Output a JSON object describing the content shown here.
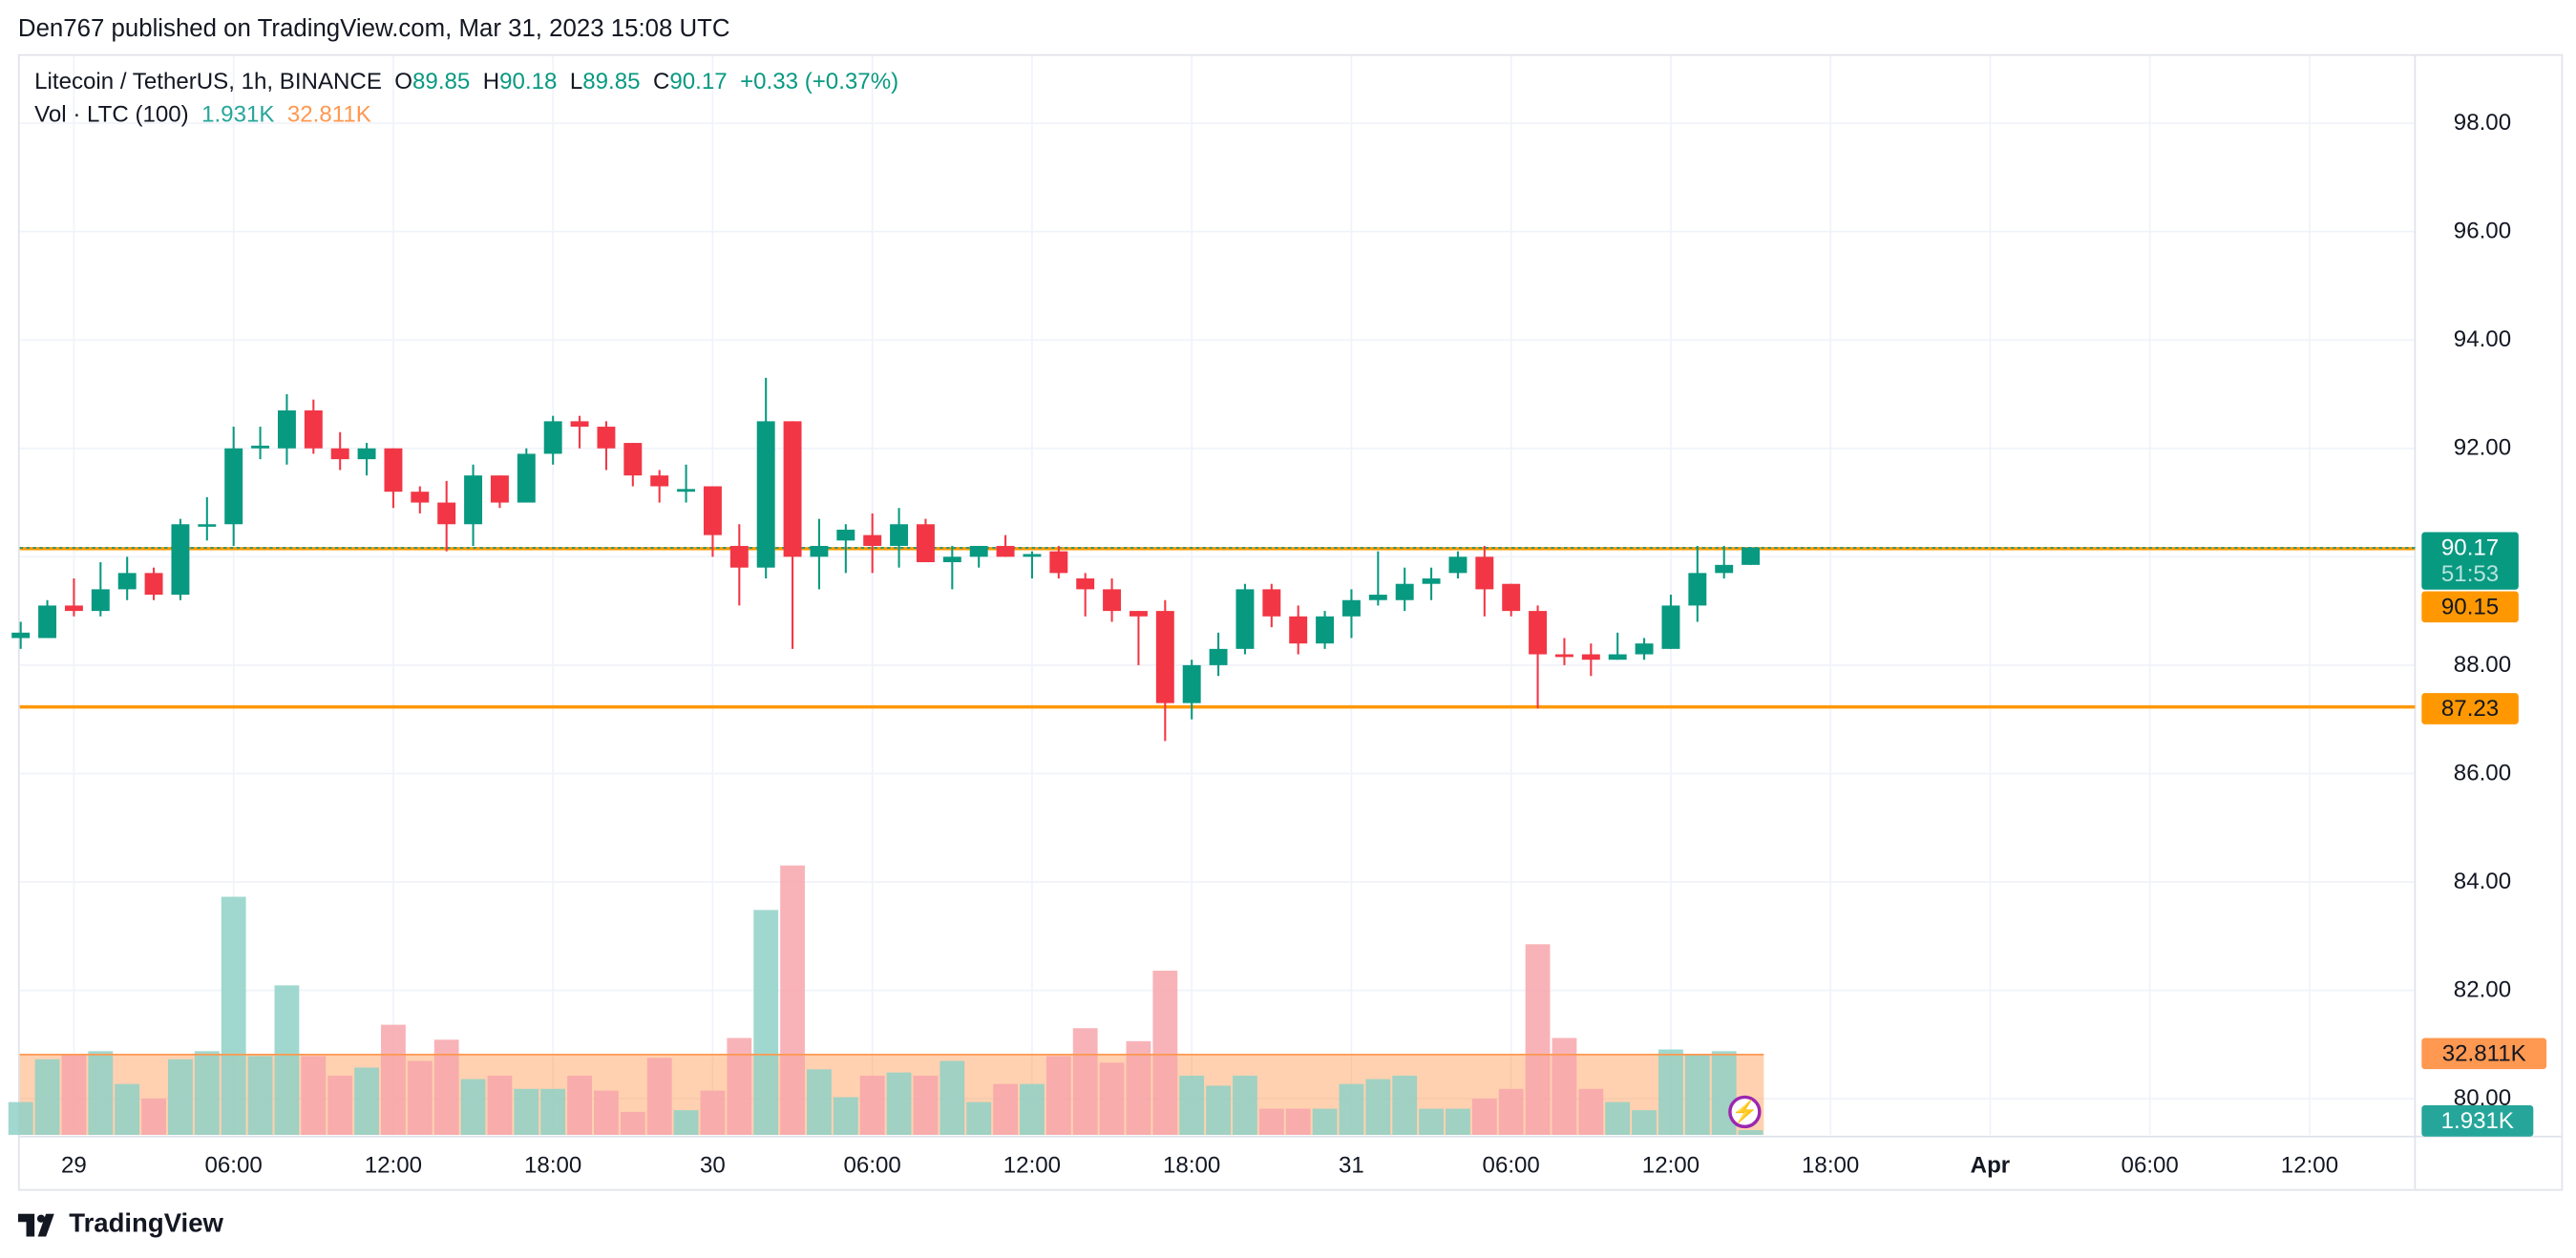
{
  "header": {
    "published": "Den767 published on TradingView.com, Mar 31, 2023 15:08 UTC"
  },
  "legend": {
    "symbol": "Litecoin / TetherUS, 1h, BINANCE",
    "o_label": "O",
    "o": "89.85",
    "h_label": "H",
    "h": "90.18",
    "l_label": "L",
    "l": "89.85",
    "c_label": "C",
    "c": "90.17",
    "change": "+0.33 (+0.37%)",
    "volume_label": "Vol · LTC (100)",
    "volume_value": "1.931K",
    "volume_ma_value": "32.811K"
  },
  "price_tags": {
    "last_price": "90.17",
    "countdown": "51:53",
    "line_upper": "90.15",
    "line_lower": "87.23",
    "volume_ma": "32.811K",
    "volume_last": "1.931K"
  },
  "logo": {
    "text": "TradingView"
  },
  "colors": {
    "up": "#089981",
    "down": "#F23645",
    "up_volume": "#8fd1c7",
    "down_volume": "#f7a6ab",
    "level_line": "#ff9800",
    "volume_ma": "#ff9850",
    "event_icon": "#9c27b0"
  },
  "icons": {
    "event": "lightning-icon",
    "logo": "tradingview-logo-icon"
  },
  "chart_data": {
    "type": "candlestick",
    "interval": "1h",
    "first_bar": "2023-03-28 22:00",
    "y_ticks": [
      "98.00",
      "96.00",
      "94.00",
      "92.00",
      "88.00",
      "86.00",
      "84.00",
      "82.00",
      "80.00"
    ],
    "ylim": [
      79.33,
      99.27
    ],
    "x_ticks": [
      "29",
      "06:00",
      "12:00",
      "18:00",
      "30",
      "06:00",
      "12:00",
      "18:00",
      "31",
      "06:00",
      "12:00",
      "18:00",
      "Apr",
      "06:00",
      "12:00"
    ],
    "x_ticks_bold": [
      false,
      false,
      false,
      false,
      false,
      false,
      false,
      false,
      false,
      false,
      false,
      false,
      true,
      false,
      false
    ],
    "horizontal_lines": [
      90.15,
      87.23
    ],
    "grid": true,
    "ohlc": [
      [
        88.5,
        88.8,
        88.3,
        88.6
      ],
      [
        88.5,
        89.2,
        88.5,
        89.1
      ],
      [
        89.1,
        89.6,
        88.9,
        89.0
      ],
      [
        89.0,
        89.9,
        88.9,
        89.4
      ],
      [
        89.4,
        90.0,
        89.2,
        89.7
      ],
      [
        89.7,
        89.8,
        89.2,
        89.3
      ],
      [
        89.3,
        90.7,
        89.2,
        90.6
      ],
      [
        90.6,
        91.1,
        90.3,
        90.6
      ],
      [
        90.6,
        92.4,
        90.2,
        92.0
      ],
      [
        92.0,
        92.4,
        91.8,
        92.05
      ],
      [
        92.0,
        93.0,
        91.7,
        92.7
      ],
      [
        92.7,
        92.9,
        91.9,
        92.0
      ],
      [
        92.0,
        92.3,
        91.6,
        91.8
      ],
      [
        91.8,
        92.1,
        91.5,
        92.0
      ],
      [
        92.0,
        92.0,
        90.9,
        91.2
      ],
      [
        91.2,
        91.3,
        90.8,
        91.0
      ],
      [
        91.0,
        91.4,
        90.1,
        90.6
      ],
      [
        90.6,
        91.7,
        90.2,
        91.5
      ],
      [
        91.5,
        91.5,
        90.9,
        91.0
      ],
      [
        91.0,
        92.0,
        91.0,
        91.9
      ],
      [
        91.9,
        92.6,
        91.7,
        92.5
      ],
      [
        92.5,
        92.6,
        92.0,
        92.4
      ],
      [
        92.4,
        92.5,
        91.6,
        92.0
      ],
      [
        92.1,
        92.1,
        91.3,
        91.5
      ],
      [
        91.5,
        91.6,
        91.0,
        91.3
      ],
      [
        91.2,
        91.7,
        91.0,
        91.25
      ],
      [
        91.3,
        91.3,
        90.0,
        90.4
      ],
      [
        90.2,
        90.6,
        89.1,
        89.8
      ],
      [
        89.8,
        93.3,
        89.6,
        92.5
      ],
      [
        92.5,
        92.5,
        88.3,
        90.0
      ],
      [
        90.0,
        90.7,
        89.4,
        90.2
      ],
      [
        90.3,
        90.6,
        89.7,
        90.5
      ],
      [
        90.4,
        90.8,
        89.7,
        90.2
      ],
      [
        90.2,
        90.9,
        89.8,
        90.6
      ],
      [
        90.6,
        90.7,
        89.9,
        89.9
      ],
      [
        89.9,
        90.2,
        89.4,
        90.0
      ],
      [
        90.0,
        90.2,
        89.8,
        90.2
      ],
      [
        90.2,
        90.4,
        90.0,
        90.0
      ],
      [
        90.0,
        90.1,
        89.6,
        90.05
      ],
      [
        90.1,
        90.2,
        89.6,
        89.7
      ],
      [
        89.6,
        89.7,
        88.9,
        89.4
      ],
      [
        89.4,
        89.6,
        88.8,
        89.0
      ],
      [
        89.0,
        89.0,
        88.0,
        88.9
      ],
      [
        89.0,
        89.2,
        86.6,
        87.3
      ],
      [
        87.3,
        88.1,
        87.0,
        88.0
      ],
      [
        88.0,
        88.6,
        87.8,
        88.3
      ],
      [
        88.3,
        89.5,
        88.2,
        89.4
      ],
      [
        89.4,
        89.5,
        88.7,
        88.9
      ],
      [
        88.9,
        89.1,
        88.2,
        88.4
      ],
      [
        88.4,
        89.0,
        88.3,
        88.9
      ],
      [
        88.9,
        89.4,
        88.5,
        89.2
      ],
      [
        89.2,
        90.1,
        89.1,
        89.3
      ],
      [
        89.2,
        89.8,
        89.0,
        89.5
      ],
      [
        89.5,
        89.8,
        89.2,
        89.6
      ],
      [
        89.7,
        90.1,
        89.6,
        90.0
      ],
      [
        90.0,
        90.2,
        88.9,
        89.4
      ],
      [
        89.5,
        89.5,
        88.9,
        89.0
      ],
      [
        89.0,
        89.1,
        87.2,
        88.2
      ],
      [
        88.2,
        88.5,
        88.0,
        88.15
      ],
      [
        88.2,
        88.4,
        87.8,
        88.1
      ],
      [
        88.1,
        88.6,
        88.1,
        88.2
      ],
      [
        88.2,
        88.5,
        88.1,
        88.4
      ],
      [
        88.3,
        89.3,
        88.3,
        89.1
      ],
      [
        89.1,
        90.2,
        88.8,
        89.7
      ],
      [
        89.7,
        90.2,
        89.6,
        89.85
      ],
      [
        89.85,
        90.18,
        89.85,
        90.17
      ]
    ],
    "volume_k": [
      13.4,
      30.9,
      32.9,
      34.2,
      20.8,
      14.8,
      30.9,
      34.2,
      97.3,
      32.2,
      61.1,
      32.2,
      24.2,
      27.5,
      45,
      30.2,
      38.9,
      22.8,
      24.2,
      18.8,
      18.8,
      24.2,
      18.1,
      9.4,
      31.5,
      10.1,
      18.1,
      39.6,
      91.9,
      110.1,
      26.8,
      15.4,
      24.2,
      25.5,
      24.2,
      30.2,
      13.4,
      20.8,
      20.8,
      32.2,
      43.6,
      29.5,
      38.3,
      67.1,
      24.2,
      20.1,
      24.2,
      10.7,
      10.7,
      10.7,
      20.8,
      22.8,
      24.2,
      10.7,
      10.7,
      14.8,
      18.8,
      77.9,
      39.6,
      18.8,
      13.4,
      10.1,
      34.9,
      32.9,
      34.2,
      1.931
    ],
    "volume_ma_k": 32.811
  }
}
